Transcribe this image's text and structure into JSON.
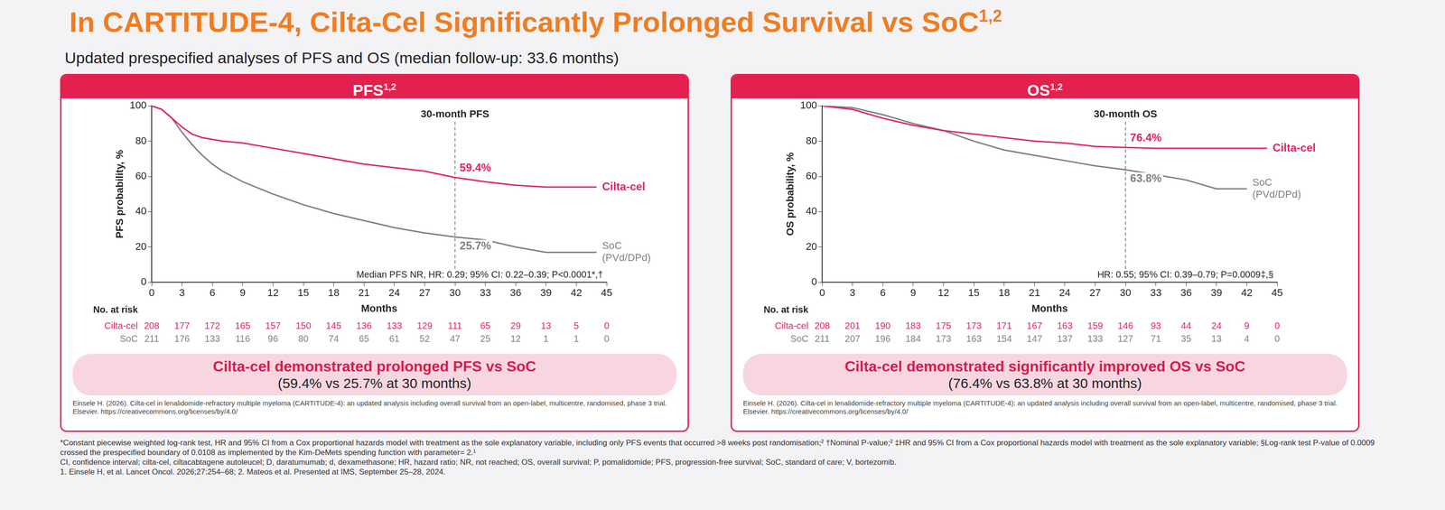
{
  "slide": {
    "title": "In CARTITUDE-4, Cilta-Cel Significantly Prolonged Survival vs SoC",
    "title_superscript": "1,2",
    "subtitle": "Updated prespecified analyses of PFS and OS (median follow-up: 33.6 months)",
    "footnotes": [
      "*Constant piecewise weighted log-rank test, HR and 95% CI from a Cox proportional hazards model with treatment as the sole explanatory variable, including only PFS events that occurred >8 weeks post randomisation;² †Nominal P-value;² ‡HR and 95% CI from a Cox proportional hazards model with treatment as the sole explanatory variable; §Log-rank test P-value of 0.0009 crossed the prespecified boundary of 0.0108 as implemented by the Kim-DeMets spending function with parameter= 2.¹",
      "CI, confidence interval; cilta-cel, ciltacabtagene autoleucel; D, daratumumab; d, dexamethasone; HR, hazard ratio; NR, not reached; OS, overall survival; P, pomalidomide; PFS, progression-free survival; SoC, standard of care; V, bortezomib.",
      "1. Einsele H, et al. Lancet Oncol. 2026;27:254–68; 2. Mateos et al. Presented at IMS, September 25–28, 2024."
    ]
  },
  "chart_data": [
    {
      "type": "line",
      "title": "PFS",
      "title_superscript": "1,2",
      "x_label": "Months",
      "y_label": "PFS probability, %",
      "x": [
        0,
        1,
        2,
        3,
        4,
        5,
        6,
        7,
        9,
        12,
        15,
        18,
        21,
        24,
        27,
        30,
        33,
        36,
        39,
        42,
        44
      ],
      "series": [
        {
          "name": "Cilta-cel",
          "color": "#e0245e",
          "values": [
            100,
            98,
            93,
            88,
            84,
            82,
            81,
            80,
            79,
            76,
            73,
            70,
            67,
            65,
            63,
            59.4,
            57,
            55,
            54,
            54,
            54
          ]
        },
        {
          "name": "SoC (PVd/DPd)",
          "color": "#7f7f7f",
          "values": [
            100,
            98,
            93,
            85,
            78,
            72,
            67,
            63,
            57,
            50,
            44,
            39,
            35,
            31,
            28,
            25.7,
            24,
            20,
            17,
            17,
            17
          ]
        }
      ],
      "xlim": [
        0,
        45
      ],
      "xticks": [
        0,
        3,
        6,
        9,
        12,
        15,
        18,
        21,
        24,
        27,
        30,
        33,
        36,
        39,
        42,
        45
      ],
      "ylim": [
        0,
        100
      ],
      "yticks": [
        0,
        20,
        40,
        60,
        80,
        100
      ],
      "grid": false,
      "landmark": {
        "x": 30,
        "label": "30-month PFS",
        "values": [
          {
            "series": "Cilta-cel",
            "value": 59.4,
            "label": "59.4%"
          },
          {
            "series": "SoC (PVd/DPd)",
            "value": 25.7,
            "label": "25.7%"
          }
        ]
      },
      "stats": "Median PFS NR, HR: 0.29; 95% CI: 0.22–0.39; P<0.0001*,†",
      "at_risk": {
        "title": "No. at risk",
        "x": [
          0,
          3,
          6,
          9,
          12,
          15,
          18,
          21,
          24,
          27,
          30,
          33,
          36,
          39,
          42,
          45
        ],
        "rows": [
          {
            "name": "Cilta-cel",
            "values": [
              208,
              177,
              172,
              165,
              157,
              150,
              145,
              136,
              133,
              129,
              111,
              65,
              29,
              13,
              5,
              0
            ]
          },
          {
            "name": "SoC",
            "values": [
              211,
              176,
              133,
              116,
              96,
              80,
              74,
              65,
              61,
              52,
              47,
              25,
              12,
              1,
              1,
              0
            ]
          }
        ]
      },
      "banner": [
        "Cilta-cel demonstrated prolonged PFS vs SoC",
        "(59.4% vs 25.7% at 30 months)"
      ],
      "citation": "Einsele H. (2026). Cilta-cel in lenalidomide-refractory multiple myeloma (CARTITUDE-4): an updated analysis including overall survival from an open-label, multicentre, randomised, phase 3 trial. Elsevier. https://creativecommons.org/licenses/by/4.0/"
    },
    {
      "type": "line",
      "title": "OS",
      "title_superscript": "1,2",
      "x_label": "Months",
      "y_label": "OS probability, %",
      "x": [
        0,
        3,
        6,
        9,
        12,
        15,
        18,
        21,
        24,
        27,
        30,
        33,
        36,
        39,
        42,
        44
      ],
      "series": [
        {
          "name": "Cilta-cel",
          "color": "#e0245e",
          "values": [
            100,
            98,
            93,
            89,
            86,
            84,
            82,
            80,
            79,
            77,
            76.4,
            76,
            76,
            76,
            76,
            76
          ]
        },
        {
          "name": "SoC (PVd/DPd)",
          "color": "#7f7f7f",
          "values": [
            100,
            99,
            95,
            90,
            86,
            80,
            75,
            72,
            69,
            66,
            63.8,
            61,
            58,
            53,
            53,
            null
          ]
        }
      ],
      "xlim": [
        0,
        45
      ],
      "xticks": [
        0,
        3,
        6,
        9,
        12,
        15,
        18,
        21,
        24,
        27,
        30,
        33,
        36,
        39,
        42,
        45
      ],
      "ylim": [
        0,
        100
      ],
      "yticks": [
        0,
        20,
        40,
        60,
        80,
        100
      ],
      "grid": false,
      "landmark": {
        "x": 30,
        "label": "30-month OS",
        "values": [
          {
            "series": "Cilta-cel",
            "value": 76.4,
            "label": "76.4%"
          },
          {
            "series": "SoC (PVd/DPd)",
            "value": 63.8,
            "label": "63.8%"
          }
        ]
      },
      "stats": "HR: 0.55; 95% CI: 0.39–0.79; P=0.0009‡,§",
      "at_risk": {
        "title": "No. at risk",
        "x": [
          0,
          3,
          6,
          9,
          12,
          15,
          18,
          21,
          24,
          27,
          30,
          33,
          36,
          39,
          42,
          45
        ],
        "rows": [
          {
            "name": "Cilta-cel",
            "values": [
              208,
              201,
              190,
              183,
              175,
              173,
              171,
              167,
              163,
              159,
              146,
              93,
              44,
              24,
              9,
              0
            ]
          },
          {
            "name": "SoC",
            "values": [
              211,
              207,
              196,
              184,
              173,
              163,
              154,
              147,
              137,
              133,
              127,
              71,
              35,
              13,
              4,
              0
            ]
          }
        ]
      },
      "banner": [
        "Cilta-cel demonstrated significantly improved OS vs SoC",
        "(76.4% vs 63.8% at 30 months)"
      ],
      "citation": "Einsele H. (2026). Cilta-cel in lenalidomide-refractory multiple myeloma (CARTITUDE-4): an updated analysis including overall survival from an open-label, multicentre, randomised, phase 3 trial. Elsevier. https://creativecommons.org/licenses/by/4.0/"
    }
  ]
}
